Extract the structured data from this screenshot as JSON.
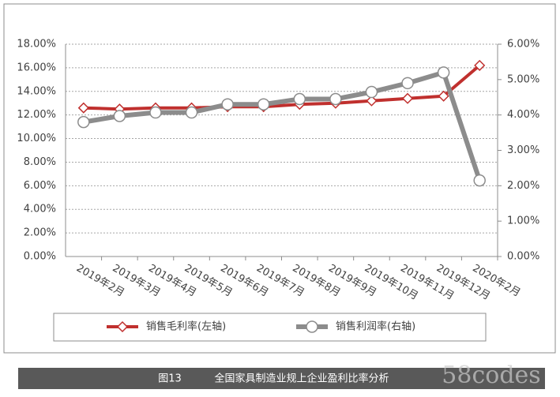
{
  "chart_data": {
    "type": "line",
    "categories": [
      "2019年2月",
      "2019年3月",
      "2019年4月",
      "2019年5月",
      "2019年6月",
      "2019年7月",
      "2019年8月",
      "2019年9月",
      "2019年10月",
      "2019年11月",
      "2019年12月",
      "2020年2月"
    ],
    "series": [
      {
        "name": "销售毛利率(左轴)",
        "color": "#c0302e",
        "values": [
          12.6,
          12.5,
          12.6,
          12.6,
          12.7,
          12.7,
          12.9,
          13.0,
          13.2,
          13.4,
          13.6,
          16.2
        ]
      },
      {
        "name": "销售利润率(右轴)",
        "color": "#8c8c8c",
        "axis": "y2",
        "values": [
          3.8,
          3.97,
          4.07,
          4.07,
          4.3,
          4.3,
          4.45,
          4.45,
          4.65,
          4.9,
          5.2,
          2.15
        ]
      }
    ],
    "ylim": [
      0,
      18
    ],
    "yticks": [
      {
        "value": 0,
        "label": "0.00%"
      },
      {
        "value": 2,
        "label": "2.00%"
      },
      {
        "value": 4,
        "label": "4.00%"
      },
      {
        "value": 6,
        "label": "6.00%"
      },
      {
        "value": 8,
        "label": "8.00%"
      },
      {
        "value": 10,
        "label": "10.00%"
      },
      {
        "value": 12,
        "label": "12.00%"
      },
      {
        "value": 14,
        "label": "14.00%"
      },
      {
        "value": 16,
        "label": "16.00%"
      },
      {
        "value": 18,
        "label": "18.00%"
      }
    ],
    "y2lim": [
      0,
      6
    ],
    "y2ticks": [
      {
        "value": 0,
        "label": "0.00%"
      },
      {
        "value": 1,
        "label": "1.00%"
      },
      {
        "value": 2,
        "label": "2.00%"
      },
      {
        "value": 3,
        "label": "3.00%"
      },
      {
        "value": 4,
        "label": "4.00%"
      },
      {
        "value": 5,
        "label": "5.00%"
      },
      {
        "value": 6,
        "label": "6.00%"
      }
    ],
    "grid": true,
    "caption_number": "图13",
    "caption": "全国家具制造业规上企业盈利比率分析",
    "watermark": "58codes"
  }
}
